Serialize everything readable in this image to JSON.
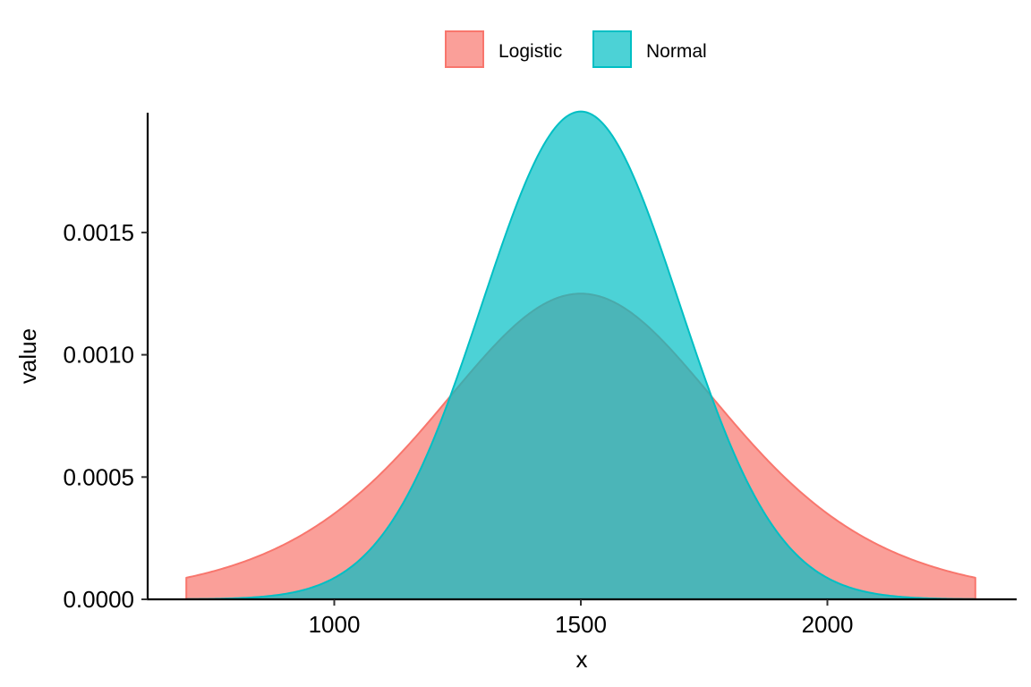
{
  "chart_data": {
    "type": "area",
    "title": "",
    "xlabel": "x",
    "ylabel": "value",
    "xlim": [
      700,
      2300
    ],
    "ylim": [
      0,
      0.002
    ],
    "x_ticks": [
      1000,
      1500,
      2000
    ],
    "x_tick_labels": [
      "1000",
      "1500",
      "2000"
    ],
    "y_ticks": [
      0,
      0.0005,
      0.001,
      0.0015
    ],
    "y_tick_labels": [
      "0.0000",
      "0.0005",
      "0.0010",
      "0.0015"
    ],
    "grid": false,
    "legend_position": "top",
    "series": [
      {
        "name": "Logistic",
        "distribution": "logistic",
        "location": 1500,
        "scale": 200,
        "peak_value": 0.00125,
        "x_range": [
          700,
          2300
        ],
        "fill": "#F8766D",
        "line": "#F8766D",
        "sample_points": {
          "x": [
            700,
            1000,
            1250,
            1500,
            1750,
            2000,
            2300
          ],
          "values": [
            8.9e-05,
            0.00035,
            0.000814,
            0.00125,
            0.000814,
            0.00035,
            8.9e-05
          ]
        }
      },
      {
        "name": "Normal",
        "distribution": "normal",
        "mean": 1500,
        "sd": 200,
        "peak_value": 0.001995,
        "x_range": [
          700,
          2300
        ],
        "fill": "#00BFC4",
        "line": "#00BFC4",
        "sample_points": {
          "x": [
            700,
            1000,
            1250,
            1500,
            1750,
            2000,
            2300
          ],
          "values": [
            7e-07,
            8.6e-05,
            0.000913,
            0.001995,
            0.000913,
            8.6e-05,
            7e-07
          ]
        }
      }
    ],
    "fill_alpha": 0.7
  },
  "legend": {
    "items": [
      {
        "label": "Logistic",
        "color": "#F8766D"
      },
      {
        "label": "Normal",
        "color": "#00BFC4"
      }
    ]
  }
}
